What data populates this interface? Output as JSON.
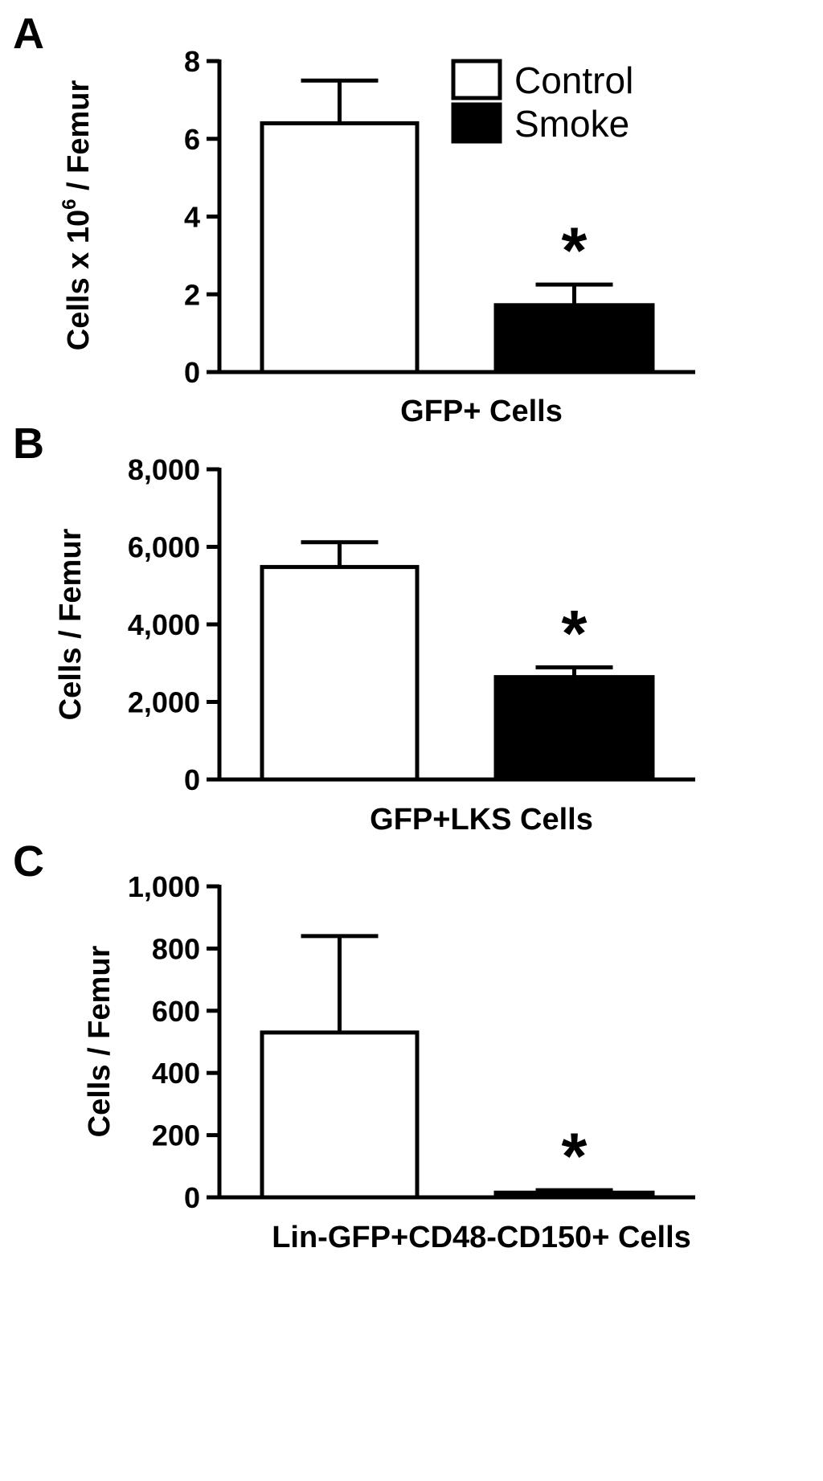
{
  "chart_data": [
    {
      "panel": "A",
      "type": "bar",
      "categories": [
        "Control",
        "Smoke"
      ],
      "values": [
        6.4,
        1.72
      ],
      "errors": [
        1.1,
        0.53
      ],
      "significance": [
        "",
        "*"
      ],
      "xlabel": "GFP+ Cells",
      "ylabel": {
        "main": "Cells x 10",
        "sup": "6",
        "rest": " / Femur"
      },
      "ylim": [
        0,
        8
      ],
      "yticks": [
        0,
        2,
        4,
        6,
        8
      ],
      "ytick_labels": [
        "0",
        "2",
        "4",
        "6",
        "8"
      ],
      "legend": {
        "placement": "top-right",
        "entries": [
          {
            "label": "Control",
            "fill": "#ffffff"
          },
          {
            "label": "Smoke",
            "fill": "#000000"
          }
        ]
      }
    },
    {
      "panel": "B",
      "type": "bar",
      "categories": [
        "Control",
        "Smoke"
      ],
      "values": [
        5480,
        2640
      ],
      "errors": [
        640,
        250
      ],
      "significance": [
        "",
        "*"
      ],
      "xlabel": "GFP+LKS Cells",
      "ylabel": {
        "main": "Cells / Femur",
        "sup": "",
        "rest": ""
      },
      "ylim": [
        0,
        8000
      ],
      "yticks": [
        0,
        2000,
        4000,
        6000,
        8000
      ],
      "ytick_labels": [
        "0",
        "2,000",
        "4,000",
        "6,000",
        "8,000"
      ]
    },
    {
      "panel": "C",
      "type": "bar",
      "categories": [
        "Control",
        "Smoke"
      ],
      "values": [
        530,
        15
      ],
      "errors": [
        310,
        8
      ],
      "significance": [
        "",
        "*"
      ],
      "xlabel": "Lin-GFP+CD48-CD150+ Cells",
      "ylabel": {
        "main": "Cells / Femur",
        "sup": "",
        "rest": ""
      },
      "ylim": [
        0,
        1000
      ],
      "yticks": [
        0,
        200,
        400,
        600,
        800,
        1000
      ],
      "ytick_labels": [
        "0",
        "200",
        "400",
        "600",
        "800",
        "1,000"
      ]
    }
  ],
  "colors": {
    "control_fill": "#ffffff",
    "smoke_fill": "#000000",
    "ink": "#000000"
  }
}
